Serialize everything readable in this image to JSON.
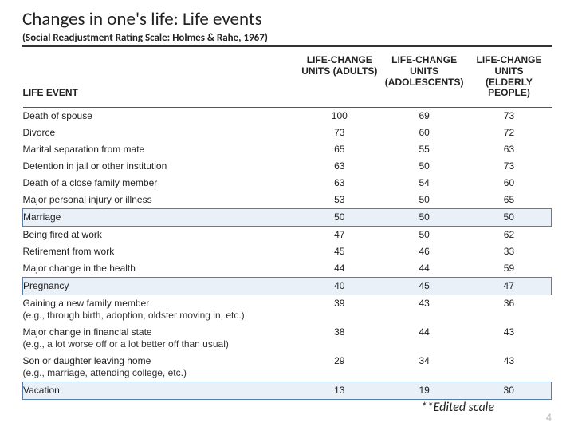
{
  "title": "Changes in one's life: Life events",
  "subtitle": "(Social Readjustment Rating Scale: Holmes & Rahe, 1967)",
  "columns": {
    "c0": "LIFE EVENT",
    "c1": "LIFE-CHANGE UNITS (ADULTS)",
    "c2": "LIFE-CHANGE UNITS (ADOLESCENTS)",
    "c3": "LIFE-CHANGE UNITS (ELDERLY PEOPLE)"
  },
  "rows": [
    {
      "event": "Death of spouse",
      "adults": "100",
      "adol": "69",
      "elderly": "73",
      "hl": false
    },
    {
      "event": "Divorce",
      "adults": "73",
      "adol": "60",
      "elderly": "72",
      "hl": false
    },
    {
      "event": "Marital separation from mate",
      "adults": "65",
      "adol": "55",
      "elderly": "63",
      "hl": false
    },
    {
      "event": "Detention in jail or other institution",
      "adults": "63",
      "adol": "50",
      "elderly": "73",
      "hl": false
    },
    {
      "event": "Death of a close family member",
      "adults": "63",
      "adol": "54",
      "elderly": "60",
      "hl": false
    },
    {
      "event": "Major personal injury or illness",
      "adults": "53",
      "adol": "50",
      "elderly": "65",
      "hl": false
    },
    {
      "event": "Marriage",
      "adults": "50",
      "adol": "50",
      "elderly": "50",
      "hl": true
    },
    {
      "event": "Being fired at work",
      "adults": "47",
      "adol": "50",
      "elderly": "62",
      "hl": false
    },
    {
      "event": "Retirement from work",
      "adults": "45",
      "adol": "46",
      "elderly": "33",
      "hl": false
    },
    {
      "event": "Major change in the health",
      "adults": "44",
      "adol": "44",
      "elderly": "59",
      "hl": false
    },
    {
      "event": "Pregnancy",
      "adults": "40",
      "adol": "45",
      "elderly": "47",
      "hl": true
    },
    {
      "event": "Gaining a new family member",
      "sub": "(e.g., through birth, adoption, oldster moving in, etc.)",
      "adults": "39",
      "adol": "43",
      "elderly": "36",
      "hl": false
    },
    {
      "event": "Major change in financial state",
      "sub": "(e.g., a lot worse off or a lot better off than usual)",
      "adults": "38",
      "adol": "44",
      "elderly": "43",
      "hl": false
    },
    {
      "event": "Son or daughter leaving home",
      "sub": "(e.g., marriage, attending college, etc.)",
      "adults": "29",
      "adol": "34",
      "elderly": "43",
      "hl": false
    },
    {
      "event": "Vacation",
      "adults": "13",
      "adol": "19",
      "elderly": "30",
      "hl": true
    }
  ],
  "footer_note": "**Edited scale",
  "page_number": "4",
  "style": {
    "highlight_border": "#5b7ea8",
    "highlight_bg": "#eaf0f8",
    "title_color": "#222222",
    "text_color": "#222222",
    "page_num_color": "#b9b9b9",
    "bg_color": "#ffffff",
    "table_header_border": "#555555"
  }
}
